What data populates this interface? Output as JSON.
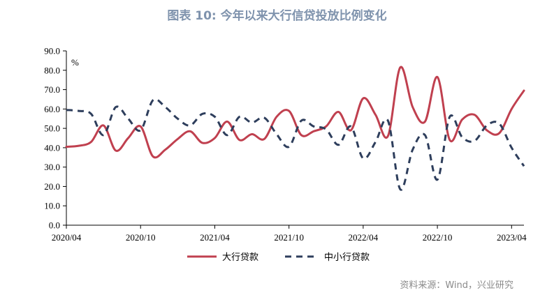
{
  "title": "图表 10: 今年以来大行信贷投放比例变化",
  "source": "资料来源：Wind，兴业研究",
  "chart_data": {
    "type": "line",
    "ylabel": "%",
    "ylim": [
      0,
      90
    ],
    "y_ticks": [
      "0.0",
      "10.0",
      "20.0",
      "30.0",
      "40.0",
      "50.0",
      "60.0",
      "70.0",
      "80.0",
      "90.0"
    ],
    "x_ticks": [
      "2020/04",
      "2020/10",
      "2021/04",
      "2021/10",
      "2022/04",
      "2022/10",
      "2023/04"
    ],
    "x": [
      "2020/04",
      "2020/05",
      "2020/06",
      "2020/07",
      "2020/08",
      "2020/09",
      "2020/10",
      "2020/11",
      "2020/12",
      "2021/01",
      "2021/02",
      "2021/03",
      "2021/04",
      "2021/05",
      "2021/06",
      "2021/07",
      "2021/08",
      "2021/09",
      "2021/10",
      "2021/11",
      "2021/12",
      "2022/01",
      "2022/02",
      "2022/03",
      "2022/04",
      "2022/05",
      "2022/06",
      "2022/07",
      "2022/08",
      "2022/09",
      "2022/10",
      "2022/11",
      "2022/12",
      "2023/01",
      "2023/02",
      "2023/03",
      "2023/04",
      "2023/05"
    ],
    "series": [
      {
        "name": "大行贷款",
        "color": "#c0404f",
        "style": "solid",
        "values": [
          40.5,
          41,
          43,
          51.5,
          38.5,
          45,
          51,
          35.5,
          39,
          44.5,
          48.5,
          42.5,
          45,
          53.5,
          44,
          47,
          44.5,
          56,
          59,
          46.5,
          48.5,
          51,
          58.5,
          49,
          65.5,
          57,
          46,
          81.5,
          61,
          53.5,
          76.5,
          44,
          54.5,
          57,
          49,
          47.5,
          60,
          69.5
        ]
      },
      {
        "name": "中小行贷款",
        "color": "#2e3e5c",
        "style": "dashed",
        "values": [
          59.5,
          59,
          57.5,
          46.5,
          61,
          55,
          49,
          64.5,
          61,
          55,
          51.5,
          57.5,
          56,
          46.5,
          56,
          53,
          55.5,
          47,
          40.5,
          54,
          51,
          49.5,
          41.5,
          51,
          34.5,
          43,
          54,
          18.5,
          39,
          46.5,
          23.5,
          56,
          45.5,
          43.5,
          51.5,
          52.5,
          40,
          30.5
        ]
      }
    ],
    "legend_position": "bottom",
    "grid": false
  }
}
